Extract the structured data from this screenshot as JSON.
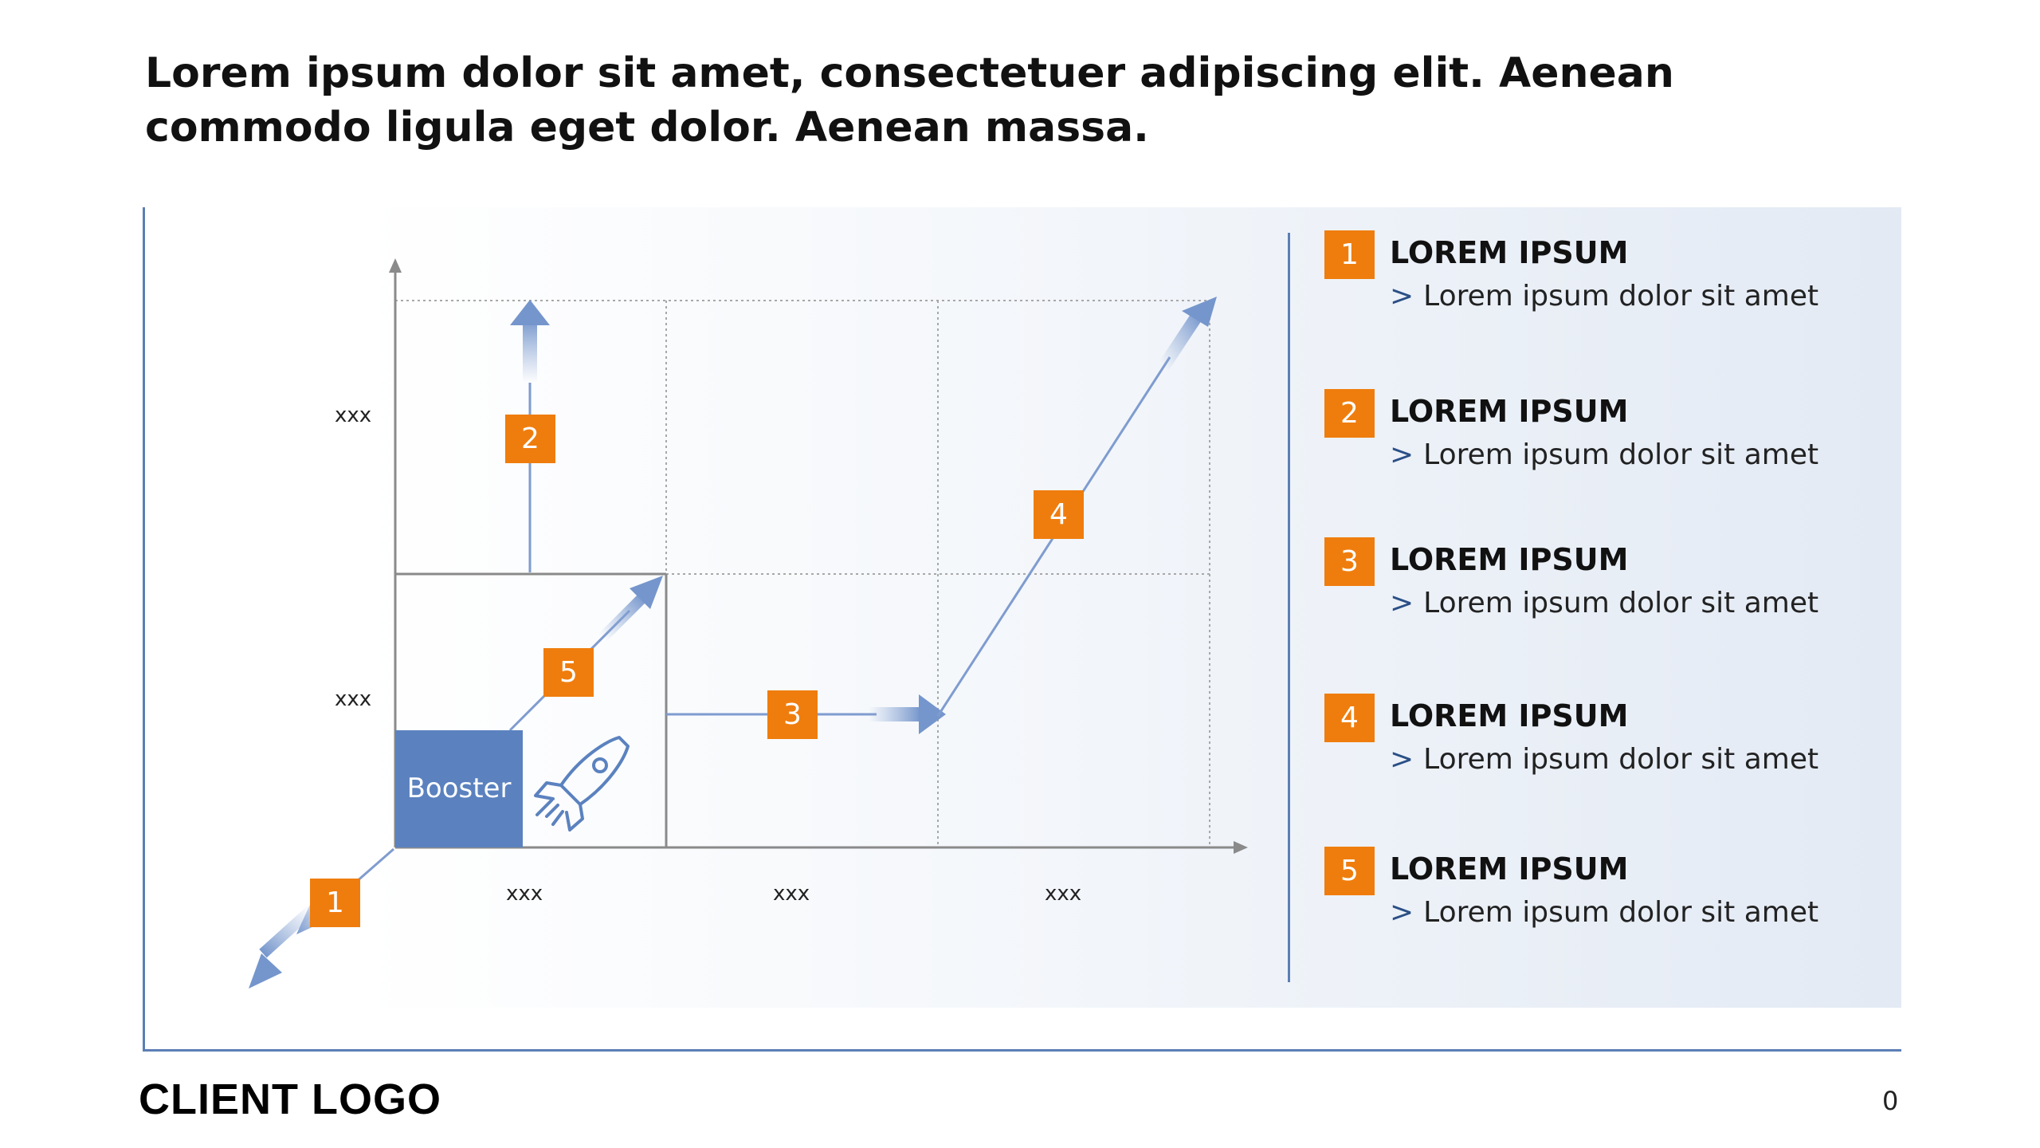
{
  "headline": "Lorem ipsum dolor sit amet, consectetuer adipiscing elit. Aenean commodo ligula eget dolor. Aenean massa.",
  "diagram": {
    "y_labels": [
      "xxx",
      "xxx"
    ],
    "x_labels": [
      "xxx",
      "xxx",
      "xxx"
    ],
    "booster_label": "Booster",
    "steps": [
      "1",
      "2",
      "3",
      "4",
      "5"
    ],
    "colors": {
      "accent": "#ef7d0d",
      "blue": "#5b82bf",
      "line": "#5b7fb5"
    },
    "icons": [
      "rocket-icon"
    ]
  },
  "legend": [
    {
      "number": "1",
      "title": "LOREM IPSUM",
      "bullet": ">",
      "text": "Lorem ipsum dolor sit amet"
    },
    {
      "number": "2",
      "title": "LOREM IPSUM",
      "bullet": ">",
      "text": "Lorem ipsum dolor sit amet"
    },
    {
      "number": "3",
      "title": "LOREM IPSUM",
      "bullet": ">",
      "text": "Lorem ipsum dolor sit amet"
    },
    {
      "number": "4",
      "title": "LOREM IPSUM",
      "bullet": ">",
      "text": "Lorem ipsum dolor sit amet"
    },
    {
      "number": "5",
      "title": "LOREM IPSUM",
      "bullet": ">",
      "text": "Lorem ipsum dolor sit amet"
    }
  ],
  "footer": {
    "logo_text": "CLIENT LOGO",
    "page_number": "0"
  }
}
